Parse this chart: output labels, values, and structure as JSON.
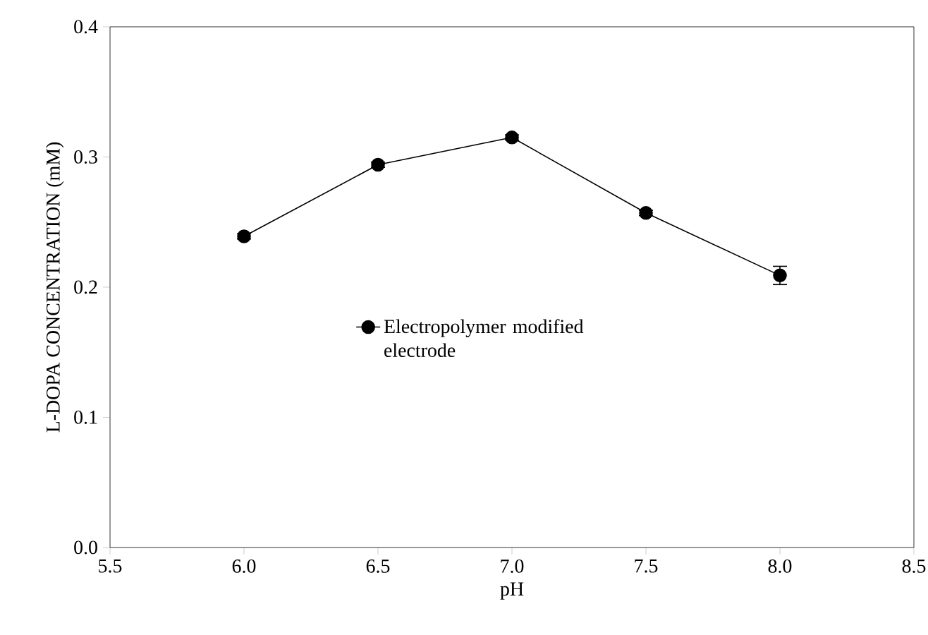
{
  "chart_data": {
    "type": "line",
    "xlabel": "pH",
    "ylabel": "L-DOPA CONCENTRATION (mM)",
    "x": [
      6.0,
      6.5,
      7.0,
      7.5,
      8.0
    ],
    "series": [
      {
        "name": "Electropolymer modified electrode",
        "color": "#000000",
        "values": [
          0.239,
          0.294,
          0.315,
          0.257,
          0.209
        ],
        "errors": [
          0.002,
          0.002,
          0.002,
          0.002,
          0.007
        ]
      }
    ],
    "xlim": [
      5.5,
      8.5
    ],
    "xticks": [
      {
        "value": 5.5,
        "label": "5.5"
      },
      {
        "value": 6.0,
        "label": "6.0"
      },
      {
        "value": 6.5,
        "label": "6.5"
      },
      {
        "value": 7.0,
        "label": "7.0"
      },
      {
        "value": 7.5,
        "label": "7.5"
      },
      {
        "value": 8.0,
        "label": "8.0"
      },
      {
        "value": 8.5,
        "label": "8.5"
      }
    ],
    "ylim": [
      0,
      0.4
    ],
    "yticks": [
      {
        "value": 0,
        "label": "0.0"
      },
      {
        "value": 0.1,
        "label": "0.1"
      },
      {
        "value": 0.2,
        "label": "0.2"
      },
      {
        "value": 0.3,
        "label": "0.3"
      },
      {
        "value": 0.4,
        "label": "0.4"
      }
    ],
    "legend": "center",
    "marker": "circle",
    "line_style": "solid",
    "grid": false
  }
}
